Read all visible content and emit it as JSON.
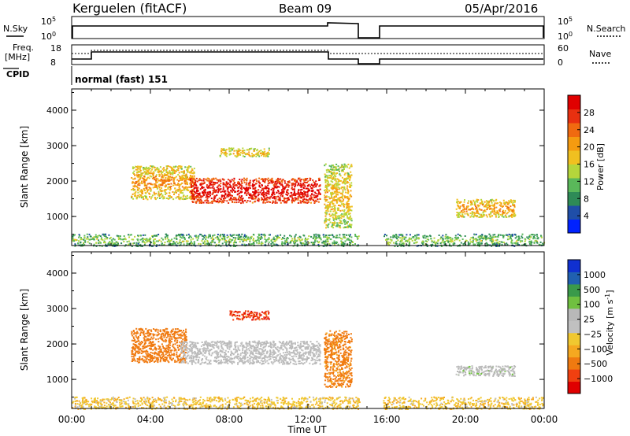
{
  "header": {
    "station": "Kerguelen (fitACF)",
    "beam": "Beam 09",
    "date": "05/Apr/2016"
  },
  "panels": {
    "sky_label": "N.Sky",
    "search_label": "N.Search",
    "freq_label_1": "Freq.",
    "freq_label_2": "[MHz]",
    "nave_label": "Nave",
    "cpid_label": "CPID",
    "cpid_value": "normal (fast) 151",
    "sky_ticks": [
      "10^5",
      "10^0"
    ],
    "search_ticks": [
      "10^5",
      "10^0"
    ],
    "freq_ticks": [
      "18",
      "8"
    ],
    "nave_ticks": [
      "60",
      "0"
    ]
  },
  "colors": {
    "power": [
      "#0022ff",
      "#1f4ea8",
      "#2e8b57",
      "#5ab85a",
      "#b5d63b",
      "#f0c020",
      "#f59b10",
      "#f06a10",
      "#e83010",
      "#e00000"
    ],
    "velocity": [
      "#e00000",
      "#f04010",
      "#f07a10",
      "#f5a820",
      "#f0c830",
      "#c0c0c0",
      "#b8b8b8",
      "#70c040",
      "#3a9a4a",
      "#2060b0",
      "#1030d0"
    ]
  },
  "chart_data": [
    {
      "type": "heatmap",
      "title": "Power",
      "xlabel": "Time UT",
      "ylabel": "Slant Range [km]",
      "x_ticks": [
        "00:00",
        "04:00",
        "08:00",
        "12:00",
        "16:00",
        "20:00",
        "00:00"
      ],
      "y_ticks": [
        "1000",
        "2000",
        "3000",
        "4000"
      ],
      "xlim_hours": [
        0,
        24
      ],
      "ylim_km": [
        180,
        4600
      ],
      "colorbar_label": "Power [dB]",
      "colorbar_ticks": [
        "4",
        "8",
        "12",
        "16",
        "20",
        "24",
        "28"
      ],
      "data_gap_hours": [
        14.6,
        15.8
      ],
      "regions": [
        {
          "name": "near-range ground scatter",
          "t0": 0.0,
          "t1": 24.0,
          "r0": 180,
          "r1": 520,
          "dB": 6
        },
        {
          "name": "rising scatter band",
          "t0": 3.0,
          "t1": 6.2,
          "r0": 1500,
          "r1": 2450,
          "dB": 14
        },
        {
          "name": "main scatter band",
          "t0": 6.0,
          "t1": 12.6,
          "r0": 1400,
          "r1": 2100,
          "dB": 24
        },
        {
          "name": "high range patch",
          "t0": 7.5,
          "t1": 10.0,
          "r0": 2700,
          "r1": 2950,
          "dB": 12
        },
        {
          "name": "post-noon echoes",
          "t0": 12.8,
          "t1": 14.2,
          "r0": 700,
          "r1": 2500,
          "dB": 12
        },
        {
          "name": "evening patch",
          "t0": 19.5,
          "t1": 22.5,
          "r0": 1000,
          "r1": 1500,
          "dB": 14
        }
      ]
    },
    {
      "type": "heatmap",
      "title": "Velocity",
      "xlabel": "Time UT",
      "ylabel": "Slant Range [km]",
      "x_ticks": [
        "00:00",
        "04:00",
        "08:00",
        "12:00",
        "16:00",
        "20:00",
        "00:00"
      ],
      "y_ticks": [
        "1000",
        "2000",
        "3000",
        "4000"
      ],
      "xlim_hours": [
        0,
        24
      ],
      "ylim_km": [
        180,
        4600
      ],
      "colorbar_label": "Velocity [m s^-1]",
      "colorbar_ticks": [
        "1000",
        "500",
        "100",
        "25",
        "−25",
        "−100",
        "−500",
        "−1000"
      ],
      "data_gap_hours": [
        14.6,
        15.8
      ],
      "regions": [
        {
          "name": "near-range ground scatter",
          "t0": 0.0,
          "t1": 24.0,
          "r0": 180,
          "r1": 520,
          "velocity": -40
        },
        {
          "name": "rising scatter band",
          "t0": 3.0,
          "t1": 5.8,
          "r0": 1500,
          "r1": 2450,
          "velocity": -300
        },
        {
          "name": "main scatter band",
          "t0": 5.5,
          "t1": 12.6,
          "r0": 1450,
          "r1": 2100,
          "velocity": 0
        },
        {
          "name": "high range patch",
          "t0": 8.0,
          "t1": 10.0,
          "r0": 2700,
          "r1": 2950,
          "velocity": -800
        },
        {
          "name": "post-noon echoes",
          "t0": 12.8,
          "t1": 14.2,
          "r0": 800,
          "r1": 2400,
          "velocity": -150
        },
        {
          "name": "evening patch",
          "t0": 19.5,
          "t1": 22.5,
          "r0": 1100,
          "r1": 1400,
          "velocity": 10
        }
      ]
    }
  ],
  "footer": {
    "xlabel": "Time UT"
  }
}
